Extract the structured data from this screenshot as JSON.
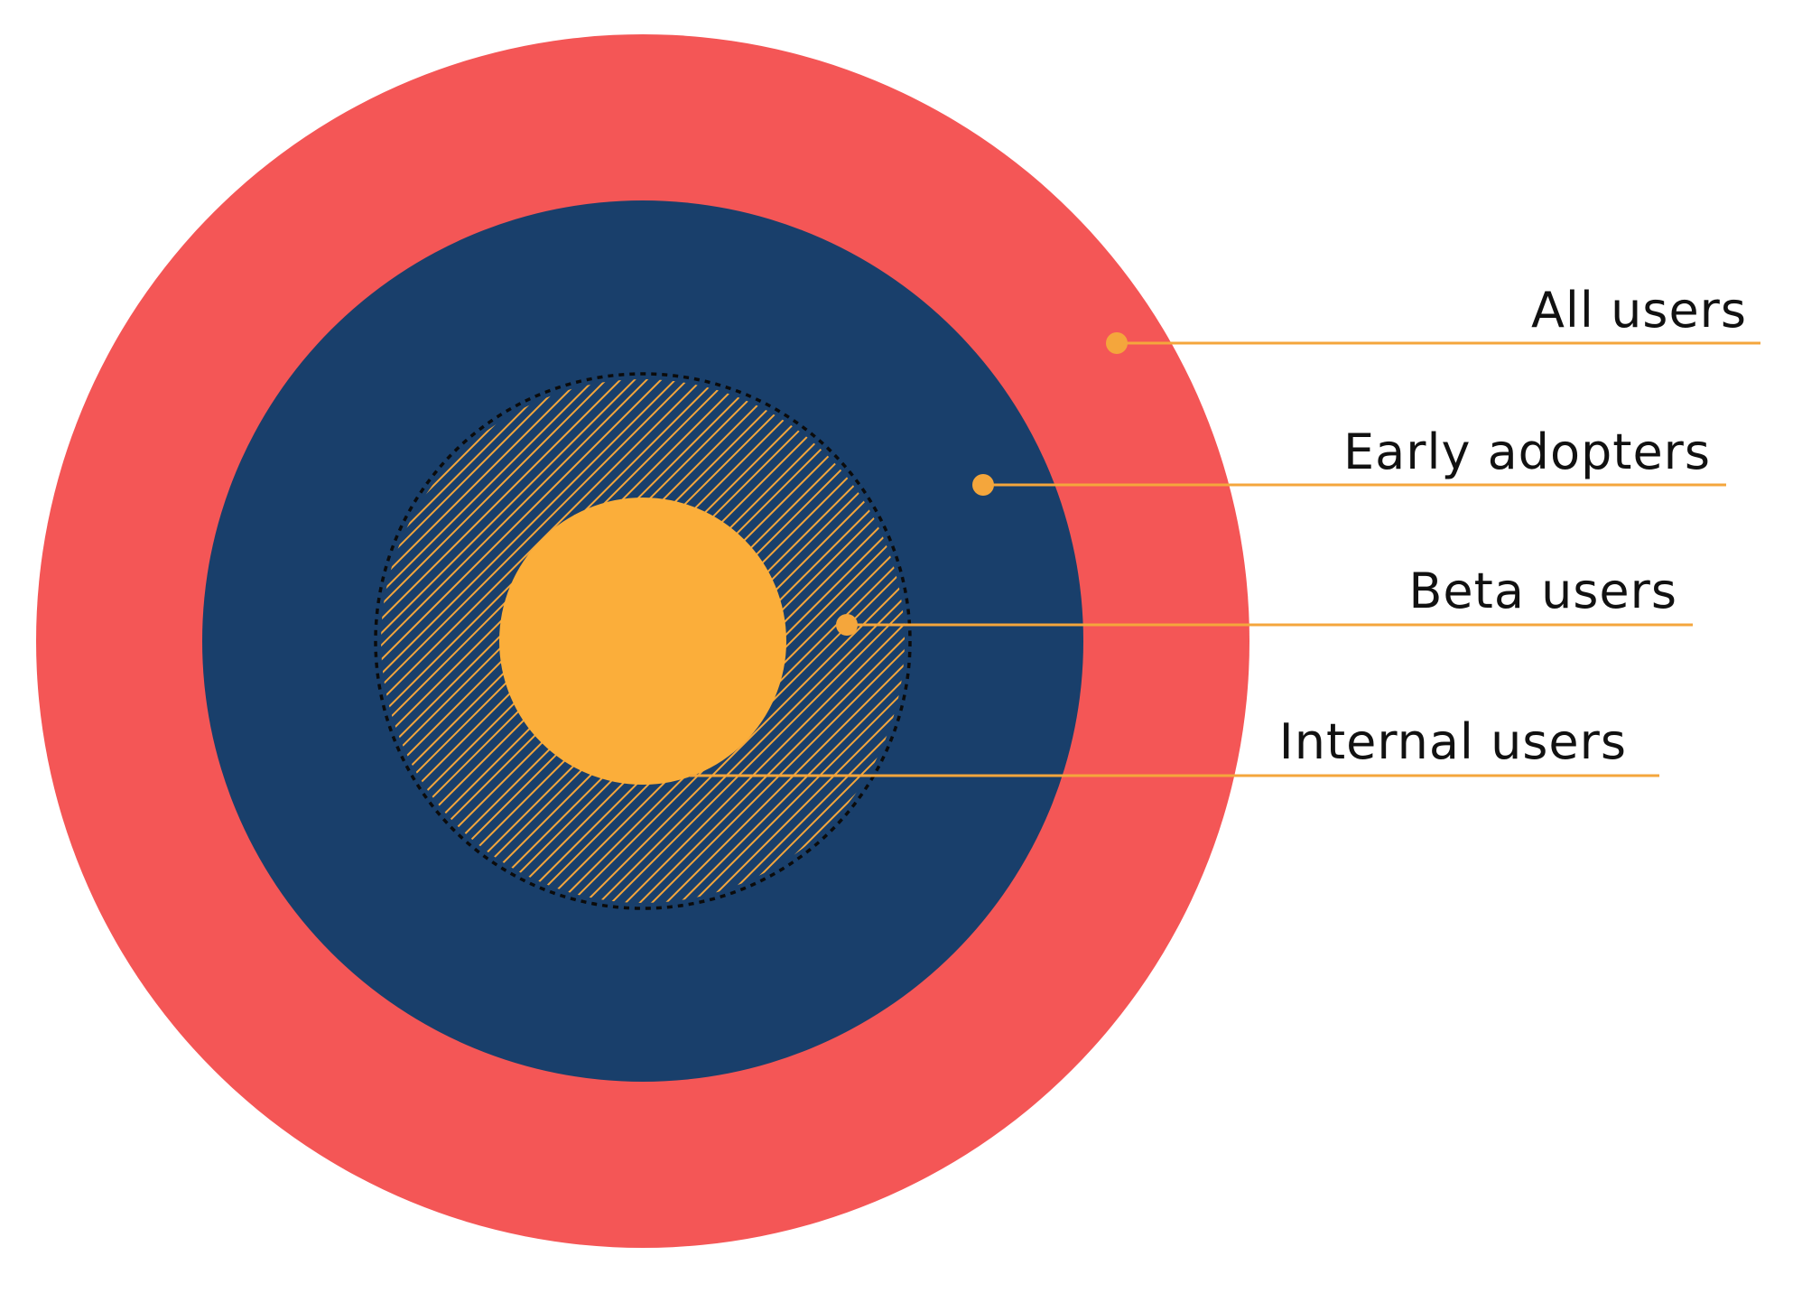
{
  "diagram": {
    "layers": [
      {
        "id": "all-users",
        "label": "All users"
      },
      {
        "id": "early-adopters",
        "label": "Early adopters"
      },
      {
        "id": "beta-users",
        "label": "Beta users"
      },
      {
        "id": "internal-users",
        "label": "Internal users"
      }
    ]
  },
  "colors": {
    "all_users": "#F45656",
    "early_adopters": "#193F6B",
    "beta_hatch": "#F4A63C",
    "beta_border": "#0b0b0b",
    "internal_users": "#FBAE3A",
    "leader": "#F4A63C",
    "text": "#111111"
  }
}
